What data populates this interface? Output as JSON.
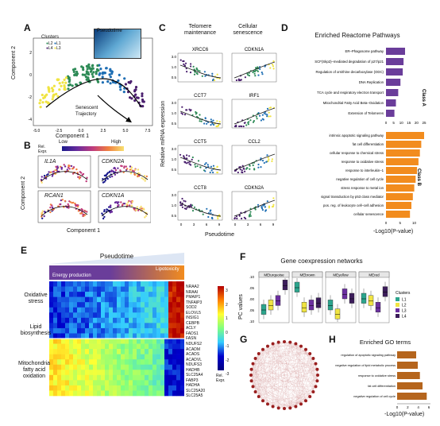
{
  "panels": {
    "A": "A",
    "B": "B",
    "C": "C",
    "D": "D",
    "E": "E",
    "F": "F",
    "G": "G",
    "H": "H"
  },
  "A": {
    "xlabel": "Component 1",
    "ylabel": "Component 2",
    "legend_title": "Clusters",
    "clusters": [
      "L1",
      "L2",
      "L3",
      "L4"
    ],
    "cluster_colors": {
      "L1": "#1f6fb4",
      "L2": "#f0e442",
      "L3": "#4a1f6e",
      "L4": "#2e8b57"
    },
    "pseudotime_label": "Pseudotime",
    "pseudo_ticks": [
      "0",
      "5",
      "10"
    ],
    "annotation": "Senescent\nTrajectory",
    "xticks": [
      "-5.0",
      "-2.5",
      "0.0",
      "2.5",
      "5.0",
      "7.5"
    ],
    "yticks": [
      "-4",
      "-2",
      "0",
      "2"
    ]
  },
  "B": {
    "legend_label": "Rel.\nExpr.",
    "low": "Low",
    "high": "High",
    "genes": [
      "IL1A",
      "CDKN2A",
      "RCAN1",
      "CDKN1A"
    ],
    "xlabel": "Component 1",
    "ylabel": "Component 2"
  },
  "C": {
    "col1": "Telomere\nmaintenance",
    "col2": "Cellular\nsenescence",
    "ylabel": "Relative mRNA expression",
    "xlabel": "Pseudotime",
    "genes_left": [
      "XRCC6",
      "CCT7",
      "CCT5",
      "CCT8"
    ],
    "genes_right": [
      "CDKN1A",
      "IRF1",
      "CCL2",
      "CDKN2A"
    ],
    "yticks": [
      "3.0",
      "1.0",
      "0.5"
    ],
    "xticks": [
      "0",
      "3",
      "6",
      "9"
    ]
  },
  "D": {
    "title": "Enriched Reactome Pathways",
    "xlabel": "-Log10(P-value)",
    "classA": "Class A",
    "classB": "Class B",
    "classA_color": "#6a3d9a",
    "classB_color": "#f28c1e",
    "classA_terms": [
      {
        "label": "ER–Phagosome pathway",
        "value": 12.5
      },
      {
        "label": "SCF(Skp2)–mediated degradation of p27/p21",
        "value": 11.5
      },
      {
        "label": "Regulation of ornithine decarboxylase (ODC)",
        "value": 11.0
      },
      {
        "label": "DNA Replication",
        "value": 9.5
      },
      {
        "label": "TCA cycle and respiratory electron transport",
        "value": 8.0
      },
      {
        "label": "Mitochondrial Fatty Acid Beta–Oxidation",
        "value": 6.5
      },
      {
        "label": "Extension of Telomeres",
        "value": 5.5
      }
    ],
    "classA_ticks": [
      "0",
      "5",
      "10",
      "15",
      "20",
      "25"
    ],
    "classB_terms": [
      {
        "label": "intrinsic apoptotic signaling pathway",
        "value": 13.5
      },
      {
        "label": "fat cell differentiation",
        "value": 12.5
      },
      {
        "label": "cellular response to chemical stress",
        "value": 12.0
      },
      {
        "label": "response to oxidative stress",
        "value": 11.5
      },
      {
        "label": "response to interleukin–1",
        "value": 11.0
      },
      {
        "label": "negative regulation of cell cycle",
        "value": 10.5
      },
      {
        "label": "stress response to metal ion",
        "value": 10.0
      },
      {
        "label": "signal transduction by p53 class mediator",
        "value": 9.5
      },
      {
        "label": "pos. reg. of leukocyte cell–cell adhesion",
        "value": 9.0
      },
      {
        "label": "cellular senescence",
        "value": 8.5
      }
    ],
    "classB_ticks": [
      "0",
      "5",
      "10"
    ]
  },
  "E": {
    "title": "Pseudotime",
    "energy": "Energy production",
    "lipotoxicity": "Lipotoxicity",
    "groups": [
      {
        "label": "Oxidative\nstress",
        "genes": [
          "NRAA2",
          "NRAAI",
          "PMAIP1",
          "TNFAIP3",
          "SOD2"
        ]
      },
      {
        "label": "Lipid\nbiosynthesis",
        "genes": [
          "ELOVL5",
          "INSIG1",
          "CEBPB",
          "ACLY",
          "FADS1",
          "FASN"
        ]
      },
      {
        "label": "Mitochondria\nfatty acid\noxidation",
        "genes": [
          "NDUFS2",
          "ACADM",
          "ACADS",
          "ACADVL",
          "NDUFS3",
          "HADHB",
          "SLC25A4",
          "FABP3",
          "HADHA",
          "SLC25A20",
          "SLC25A5"
        ]
      }
    ],
    "scale_ticks": [
      "3",
      "2",
      "1",
      "0",
      "-1",
      "-2",
      "-3"
    ],
    "scale_label": "Rel.\nExpr."
  },
  "F": {
    "title": "Gene coexpression networks",
    "ylabel": "PC values",
    "modules": [
      "MEturquoise",
      "MEbrown",
      "MEyellow",
      "MEred"
    ],
    "legend_title": "Clusters",
    "clusters": [
      "L1",
      "L2",
      "L3",
      "L4"
    ],
    "colors": [
      "#2ca58d",
      "#f0e442",
      "#6b2fa0",
      "#3b1c5a"
    ],
    "yticks": [
      "0.10",
      "0.05",
      "0.00",
      "-0.05",
      "-0.10"
    ]
  },
  "G": {
    "label": "network"
  },
  "H": {
    "title": "Enriched GO terms",
    "xlabel": "-Log10(P-value)",
    "terms": [
      {
        "label": "regulation of apoptotic signaling pathway",
        "value": 3.6
      },
      {
        "label": "negative regulation of lipid metabolic process",
        "value": 3.9
      },
      {
        "label": "response to oxidative stress",
        "value": 4.3
      },
      {
        "label": "fat cell differentiation",
        "value": 4.8
      },
      {
        "label": "negative regulation of cell cycle",
        "value": 5.6
      }
    ],
    "ticks": [
      "0",
      "2",
      "4",
      "6"
    ],
    "color": "#b5651d"
  }
}
